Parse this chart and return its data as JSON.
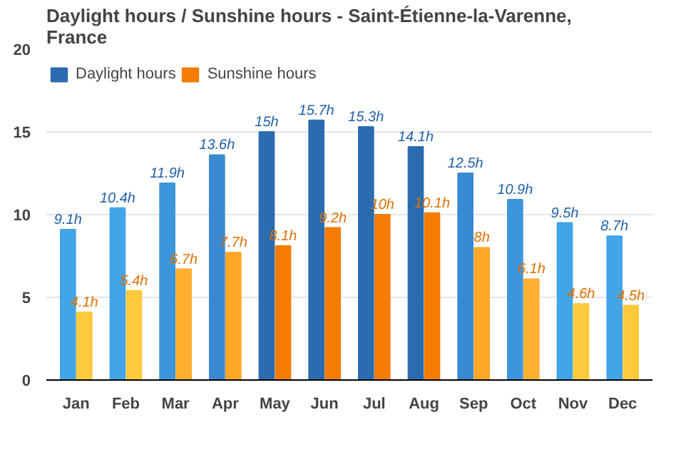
{
  "chart_data": {
    "type": "bar",
    "title": "Daylight hours / Sunshine hours - Saint-Étienne-la-Varenne, France",
    "categories": [
      "Jan",
      "Feb",
      "Mar",
      "Apr",
      "May",
      "Jun",
      "Jul",
      "Aug",
      "Sep",
      "Oct",
      "Nov",
      "Dec"
    ],
    "series": [
      {
        "name": "Daylight hours",
        "color": "#1f5fa8",
        "colors": [
          "#42a5e8",
          "#42a5e8",
          "#3d96dc",
          "#3a8ad2",
          "#2b6cb0",
          "#2b6cb0",
          "#2b6cb0",
          "#2b6cb0",
          "#3a8ad2",
          "#3d96dc",
          "#42a5e8",
          "#42a5e8"
        ],
        "values": [
          9.1,
          10.4,
          11.9,
          13.6,
          15,
          15.7,
          15.3,
          14.1,
          12.5,
          10.9,
          9.5,
          8.7
        ],
        "value_labels": [
          "9.1h",
          "10.4h",
          "11.9h",
          "13.6h",
          "15h",
          "15.7h",
          "15.3h",
          "14.1h",
          "12.5h",
          "10.9h",
          "9.5h",
          "8.7h"
        ]
      },
      {
        "name": "Sunshine hours",
        "color": "#e07000",
        "colors": [
          "#ffc93c",
          "#ffc93c",
          "#ffb030",
          "#ffa726",
          "#f57c00",
          "#f57c00",
          "#f57c00",
          "#f57c00",
          "#ffa726",
          "#ffb030",
          "#ffc93c",
          "#ffc93c"
        ],
        "values": [
          4.1,
          5.4,
          6.7,
          7.7,
          8.1,
          9.2,
          10,
          10.1,
          8,
          6.1,
          4.6,
          4.5
        ],
        "value_labels": [
          "4.1h",
          "5.4h",
          "6.7h",
          "7.7h",
          "8.1h",
          "9.2h",
          "10h",
          "10.1h",
          "8h",
          "6.1h",
          "4.6h",
          "4.5h"
        ]
      }
    ],
    "ylim": [
      0,
      20
    ],
    "yticks": [
      0,
      5,
      10,
      15,
      20
    ],
    "grid": "y",
    "legend": "top left"
  }
}
